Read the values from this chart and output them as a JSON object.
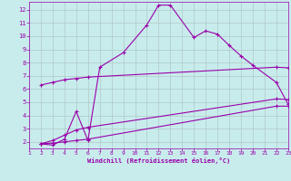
{
  "xlabel": "Windchill (Refroidissement éolien,°C)",
  "bg_color": "#c8ecec",
  "line_color": "#9900aa",
  "grid_color": "#b0c8c8",
  "xlim": [
    1,
    23
  ],
  "ylim": [
    1.5,
    12.6
  ],
  "xticks": [
    1,
    2,
    3,
    4,
    5,
    6,
    7,
    8,
    9,
    10,
    11,
    12,
    13,
    14,
    15,
    16,
    17,
    18,
    19,
    20,
    21,
    22,
    23
  ],
  "yticks": [
    2,
    3,
    4,
    5,
    6,
    7,
    8,
    9,
    10,
    11,
    12
  ],
  "line1_x": [
    2,
    3,
    4,
    5,
    6,
    7,
    9,
    11,
    12,
    13,
    15,
    16,
    17,
    18,
    19,
    20,
    22,
    23
  ],
  "line1_y": [
    1.85,
    1.75,
    2.2,
    4.3,
    2.1,
    7.65,
    8.75,
    10.85,
    12.35,
    12.35,
    9.9,
    10.4,
    10.15,
    9.3,
    8.5,
    7.8,
    6.5,
    4.85
  ],
  "line2_x": [
    2,
    3,
    4,
    5,
    6,
    22,
    23
  ],
  "line2_y": [
    6.3,
    6.5,
    6.7,
    6.8,
    6.9,
    7.65,
    7.6
  ],
  "line3_x": [
    2,
    3,
    4,
    5,
    6,
    22,
    23
  ],
  "line3_y": [
    1.85,
    2.1,
    2.5,
    2.9,
    3.1,
    5.25,
    5.2
  ],
  "line4_x": [
    2,
    3,
    4,
    5,
    6,
    22,
    23
  ],
  "line4_y": [
    1.85,
    1.9,
    2.0,
    2.1,
    2.2,
    4.7,
    4.7
  ]
}
